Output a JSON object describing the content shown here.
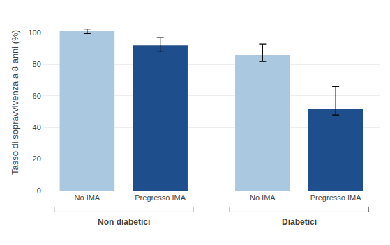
{
  "chart_data": {
    "type": "bar",
    "categories": [
      "No IMA",
      "Pregresso IMA",
      "No IMA",
      "Pregresso IMA"
    ],
    "values": [
      101,
      92,
      86,
      52
    ],
    "errors_low": [
      1.5,
      4,
      4,
      4
    ],
    "errors_high": [
      1.5,
      5,
      7,
      14
    ],
    "colors": [
      "#aac8e0",
      "#1f4e8c",
      "#aac8e0",
      "#1f4e8c"
    ],
    "groups": [
      "Non diabetici",
      "Non diabetici",
      "Diabetici",
      "Diabetici"
    ],
    "ylabel": "Tasso di sopravvivenza a 8 anni (%)",
    "ylim": [
      0,
      112
    ],
    "yticks": [
      0,
      20,
      40,
      60,
      80,
      100
    ],
    "grid": true
  }
}
